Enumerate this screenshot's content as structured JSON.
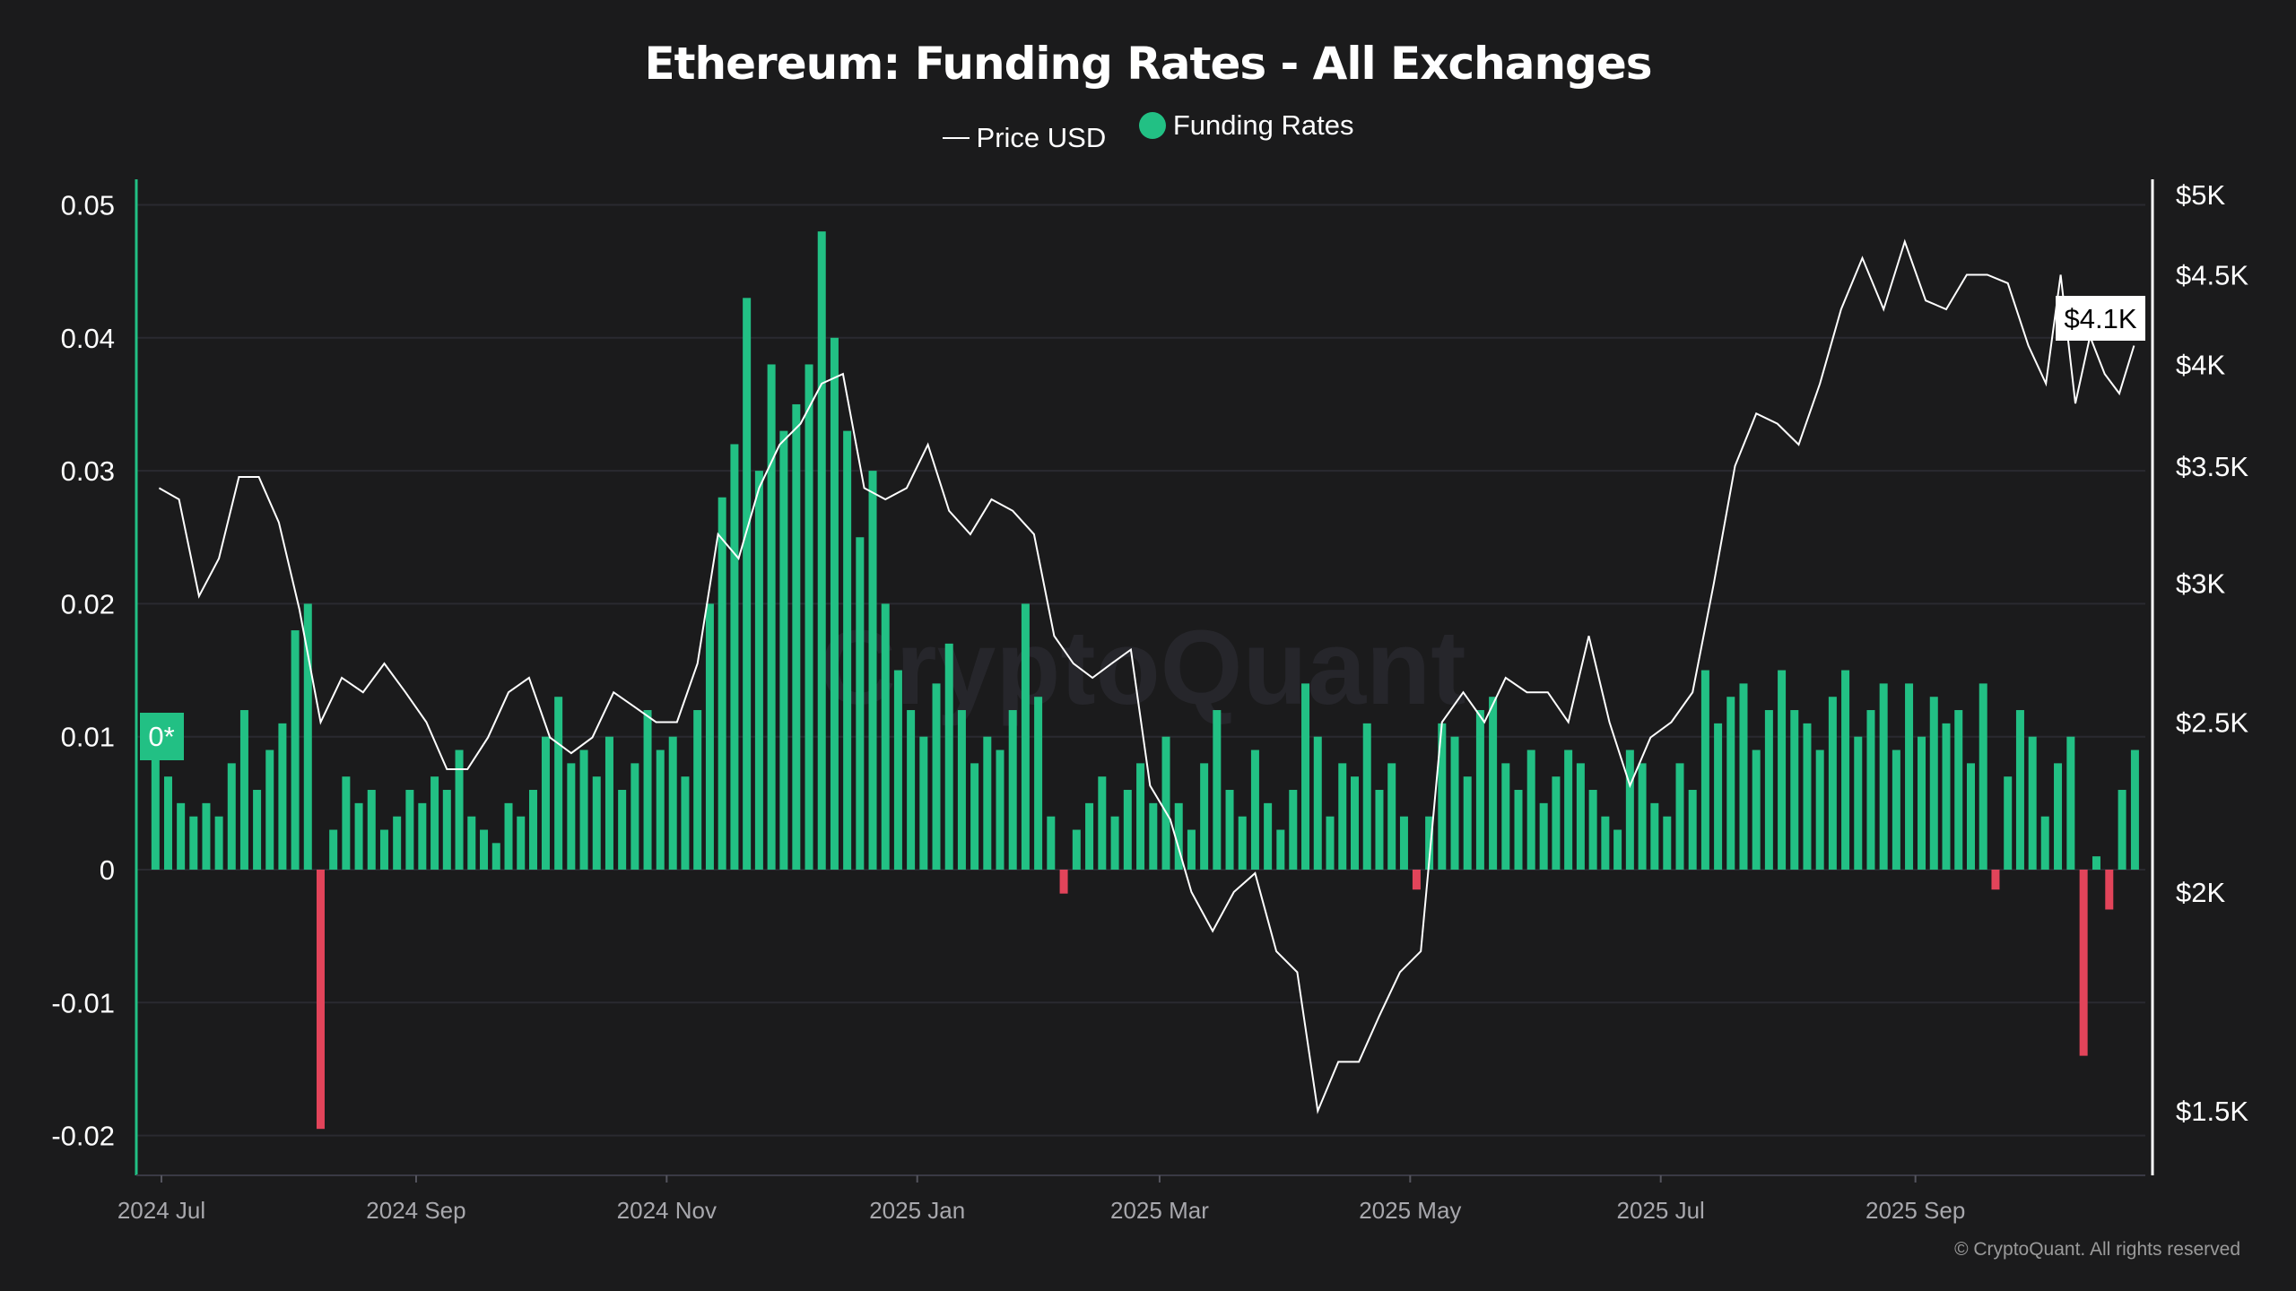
{
  "chart_data": {
    "type": "bar",
    "title": "Ethereum: Funding Rates - All Exchanges",
    "legend": [
      "Price USD",
      "Funding Rates"
    ],
    "legend_placement": "top",
    "colors": {
      "background": "#1b1b1c",
      "positive": "#22c084",
      "negative": "#e2445a",
      "price": "#ffffff",
      "grid": "#2a2a30"
    },
    "grid": true,
    "left_axis": {
      "ticks": [
        "0.05",
        "0.04",
        "0.03",
        "0.02",
        "0.01",
        "0",
        "-0.01",
        "-0.02"
      ],
      "tick_values": [
        0.05,
        0.04,
        0.03,
        0.02,
        0.01,
        0,
        -0.01,
        -0.02
      ],
      "ylim": [
        -0.023,
        0.052
      ]
    },
    "right_axis": {
      "scale": "log",
      "ticks": [
        "$5K",
        "$4.5K",
        "$4K",
        "$3.5K",
        "$3K",
        "$2.5K",
        "$2K",
        "$1.5K"
      ],
      "tick_values": [
        5000,
        4500,
        4000,
        3500,
        3000,
        2500,
        2000,
        1500
      ]
    },
    "x_axis": {
      "ticks": [
        "2024 Jul",
        "2024 Sep",
        "2024 Nov",
        "2025 Jan",
        "2025 Mar",
        "2025 May",
        "2025 Jul",
        "2025 Sep"
      ],
      "tick_dates": [
        "2024-07-01",
        "2024-09-01",
        "2024-11-01",
        "2025-01-01",
        "2025-03-01",
        "2025-05-01",
        "2025-07-01",
        "2025-09-01"
      ],
      "range": [
        "2024-06-28",
        "2025-10-25"
      ]
    },
    "series": [
      {
        "name": "Funding Rates",
        "type": "bar",
        "values_by_month": {
          "2024-07": [
            0.01,
            0.007,
            0.005,
            0.004,
            0.005,
            0.004,
            0.008,
            0.012,
            0.006,
            0.009,
            0.011
          ],
          "2024-08": [
            0.018,
            0.02,
            -0.0195,
            0.003,
            0.007,
            0.005,
            0.006,
            0.003,
            0.004,
            0.006
          ],
          "2024-09": [
            0.005,
            0.007,
            0.006,
            0.009,
            0.004,
            0.003,
            0.002,
            0.005,
            0.004,
            0.006
          ],
          "2024-10": [
            0.01,
            0.013,
            0.008,
            0.009,
            0.007,
            0.01,
            0.006,
            0.008,
            0.012,
            0.009
          ],
          "2024-11": [
            0.01,
            0.007,
            0.012,
            0.02,
            0.028,
            0.032,
            0.043,
            0.03,
            0.038,
            0.033
          ],
          "2024-12": [
            0.035,
            0.038,
            0.048,
            0.04,
            0.033,
            0.025,
            0.03,
            0.02,
            0.015,
            0.012
          ],
          "2025-01": [
            0.01,
            0.014,
            0.017,
            0.012,
            0.008,
            0.01,
            0.009,
            0.012,
            0.02,
            0.013
          ],
          "2025-02": [
            0.004,
            -0.0018,
            0.003,
            0.005,
            0.007,
            0.004,
            0.006,
            0.008,
            0.005
          ],
          "2025-03": [
            0.01,
            0.005,
            0.003,
            0.008,
            0.012,
            0.006,
            0.004,
            0.009,
            0.005,
            0.003
          ],
          "2025-04": [
            0.006,
            0.014,
            0.01,
            0.004,
            0.008,
            0.007,
            0.011,
            0.006,
            0.008,
            0.004
          ],
          "2025-05": [
            -0.0015,
            0.004,
            0.011,
            0.01,
            0.007,
            0.012,
            0.013,
            0.008,
            0.006,
            0.009
          ],
          "2025-06": [
            0.005,
            0.007,
            0.009,
            0.008,
            0.006,
            0.004,
            0.003,
            0.009,
            0.008,
            0.005
          ],
          "2025-07": [
            0.004,
            0.008,
            0.006,
            0.015,
            0.011,
            0.013,
            0.014,
            0.009,
            0.012,
            0.015
          ],
          "2025-08": [
            0.012,
            0.011,
            0.009,
            0.013,
            0.015,
            0.01,
            0.012,
            0.014,
            0.009,
            0.014
          ],
          "2025-09": [
            0.01,
            0.013,
            0.011,
            0.012,
            0.008,
            0.014,
            -0.0015,
            0.007,
            0.012,
            0.01
          ],
          "2025-10": [
            0.004,
            0.008,
            0.01,
            -0.014,
            0.001,
            -0.003,
            0.006,
            0.009
          ]
        }
      },
      {
        "name": "Price USD",
        "type": "line",
        "axis": "right",
        "values_by_month": {
          "2024-07": [
            3400,
            3350,
            2950,
            3100,
            3450,
            3450,
            3250
          ],
          "2024-08": [
            2900,
            2500,
            2650,
            2600,
            2700,
            2600
          ],
          "2024-09": [
            2500,
            2350,
            2350,
            2450,
            2600,
            2650
          ],
          "2024-10": [
            2450,
            2400,
            2450,
            2600,
            2550,
            2500
          ],
          "2024-11": [
            2500,
            2700,
            3200,
            3100,
            3400,
            3600
          ],
          "2024-12": [
            3700,
            3900,
            3950,
            3400,
            3350,
            3400
          ],
          "2025-01": [
            3600,
            3300,
            3200,
            3350,
            3300,
            3200
          ],
          "2025-02": [
            2800,
            2700,
            2650,
            2700,
            2750,
            2300
          ],
          "2025-03": [
            2200,
            2000,
            1900,
            2000,
            2050,
            1850
          ],
          "2025-04": [
            1800,
            1500,
            1600,
            1600,
            1700,
            1800
          ],
          "2025-05": [
            1850,
            2500,
            2600,
            2500,
            2650,
            2600
          ],
          "2025-06": [
            2600,
            2500,
            2800,
            2500,
            2300,
            2450
          ],
          "2025-07": [
            2500,
            2600,
            3000,
            3500,
            3750,
            3700
          ],
          "2025-08": [
            3600,
            3900,
            4300,
            4600,
            4300,
            4700
          ],
          "2025-09": [
            4350,
            4300,
            4500,
            4500,
            4450,
            4100
          ],
          "2025-10": [
            3900,
            4500,
            3800,
            4150,
            3950,
            3850,
            4100
          ]
        }
      }
    ],
    "current_price_label": "$4.1K",
    "current_funding_label": "0*",
    "watermark": "CryptoQuant"
  },
  "footer": "© CryptoQuant. All rights reserved"
}
